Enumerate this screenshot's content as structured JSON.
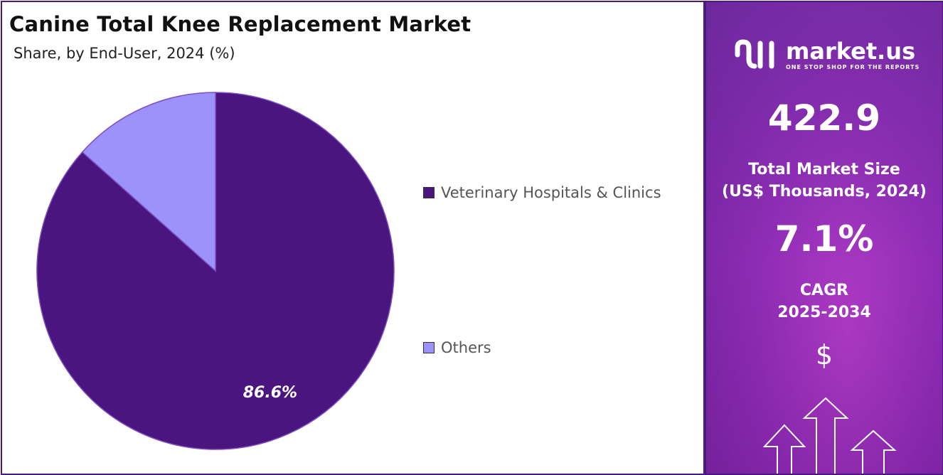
{
  "title": "Canine Total Knee Replacement Market",
  "subtitle": "Share, by End-User, 2024 (%)",
  "chart_data": {
    "type": "pie",
    "categories": [
      "Veterinary Hospitals & Clinics",
      "Others"
    ],
    "values": [
      86.6,
      13.4
    ],
    "data_labels": [
      "86.6%",
      ""
    ],
    "colors": [
      "#4b1580",
      "#9b92fb"
    ],
    "legend_position": "right"
  },
  "legend": {
    "items": [
      "Veterinary Hospitals & Clinics",
      "Others"
    ]
  },
  "brand": {
    "name": "market.us",
    "tagline": "ONE STOP SHOP FOR THE REPORTS"
  },
  "stats": {
    "market_size_value": "422.9",
    "market_size_label_line1": "Total Market Size",
    "market_size_label_line2": "(US$ Thousands, 2024)",
    "cagr_value": "7.1%",
    "cagr_label_line1": "CAGR",
    "cagr_label_line2": "2025-2034",
    "currency_symbol": "$"
  }
}
